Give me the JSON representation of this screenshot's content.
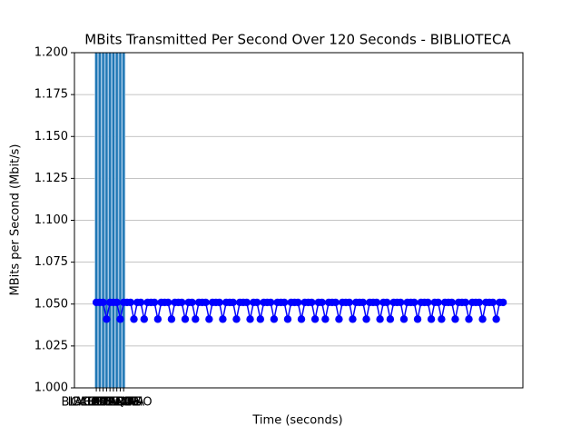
{
  "chart_data": {
    "type": "combo",
    "title": "MBits Transmitted Per Second Over 120 Seconds - BIBLIOTECA",
    "x_label": "Time (seconds)",
    "y_label": "MBits per Second (Mbit/s)",
    "xlim": [
      -6.4,
      124.8
    ],
    "ylim": [
      1.0,
      1.2
    ],
    "yticks": [
      {
        "value": 1.0,
        "label": "1.000"
      },
      1.025,
      {
        "value": 1.05,
        "label": "1.050"
      },
      1.075,
      {
        "value": 1.1,
        "label": "1.100"
      },
      1.125,
      {
        "value": 1.15,
        "label": "1.150"
      },
      1.175,
      {
        "value": 1.2,
        "label": "1.200"
      }
    ],
    "grid": true,
    "bars": {
      "color": "#1f77b4",
      "categories": [
        "BIBLIOTECA",
        "CASA",
        "CAFETERIA",
        "AULA",
        "LABORATORIO",
        "ESTADIO",
        "PARQUE",
        "OFICINA",
        "STATS"
      ],
      "values": [
        1.25,
        1.25,
        1.25,
        1.25,
        1.25,
        1.25,
        1.25,
        1.25,
        1.25
      ]
    },
    "line": {
      "color": "#0000ff",
      "x": [
        0,
        1,
        2,
        3,
        4,
        5,
        6,
        7,
        8,
        9,
        10,
        11,
        12,
        13,
        14,
        15,
        16,
        17,
        18,
        19,
        20,
        21,
        22,
        23,
        24,
        25,
        26,
        27,
        28,
        29,
        30,
        31,
        32,
        33,
        34,
        35,
        36,
        37,
        38,
        39,
        40,
        41,
        42,
        43,
        44,
        45,
        46,
        47,
        48,
        49,
        50,
        51,
        52,
        53,
        54,
        55,
        56,
        57,
        58,
        59,
        60,
        61,
        62,
        63,
        64,
        65,
        66,
        67,
        68,
        69,
        70,
        71,
        72,
        73,
        74,
        75,
        76,
        77,
        78,
        79,
        80,
        81,
        82,
        83,
        84,
        85,
        86,
        87,
        88,
        89,
        90,
        91,
        92,
        93,
        94,
        95,
        96,
        97,
        98,
        99,
        100,
        101,
        102,
        103,
        104,
        105,
        106,
        107,
        108,
        109,
        110,
        111,
        112,
        113,
        114,
        115,
        116,
        117,
        118,
        119
      ],
      "values": [
        1.051,
        1.051,
        1.051,
        1.041,
        1.051,
        1.051,
        1.051,
        1.041,
        1.051,
        1.051,
        1.051,
        1.041,
        1.051,
        1.051,
        1.041,
        1.051,
        1.051,
        1.051,
        1.041,
        1.051,
        1.051,
        1.051,
        1.041,
        1.051,
        1.051,
        1.051,
        1.041,
        1.051,
        1.051,
        1.041,
        1.051,
        1.051,
        1.051,
        1.041,
        1.051,
        1.051,
        1.051,
        1.041,
        1.051,
        1.051,
        1.051,
        1.041,
        1.051,
        1.051,
        1.051,
        1.041,
        1.051,
        1.051,
        1.041,
        1.051,
        1.051,
        1.051,
        1.041,
        1.051,
        1.051,
        1.051,
        1.041,
        1.051,
        1.051,
        1.051,
        1.041,
        1.051,
        1.051,
        1.051,
        1.041,
        1.051,
        1.051,
        1.041,
        1.051,
        1.051,
        1.051,
        1.041,
        1.051,
        1.051,
        1.051,
        1.041,
        1.051,
        1.051,
        1.051,
        1.041,
        1.051,
        1.051,
        1.051,
        1.041,
        1.051,
        1.051,
        1.041,
        1.051,
        1.051,
        1.051,
        1.041,
        1.051,
        1.051,
        1.051,
        1.041,
        1.051,
        1.051,
        1.051,
        1.041,
        1.051,
        1.051,
        1.041,
        1.051,
        1.051,
        1.051,
        1.041,
        1.051,
        1.051,
        1.051,
        1.041,
        1.051,
        1.051,
        1.051,
        1.041,
        1.051,
        1.051,
        1.051,
        1.041,
        1.051,
        1.051
      ]
    }
  }
}
